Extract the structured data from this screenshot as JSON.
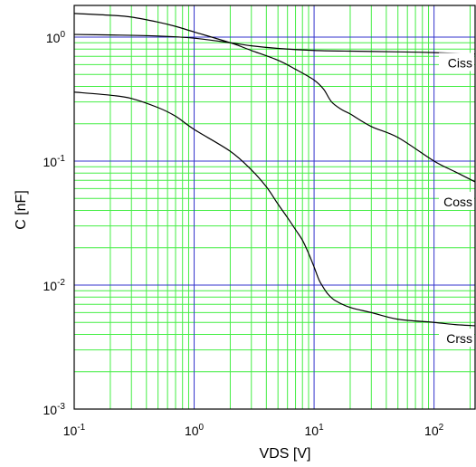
{
  "chart_data": {
    "type": "line",
    "title": "",
    "xlabel": "VDS [V]",
    "ylabel": "C [nF]",
    "xscale": "log",
    "yscale": "log",
    "xlim": [
      0.1,
      220
    ],
    "ylim": [
      0.001,
      1.8
    ],
    "grid": true,
    "colors": {
      "minor_grid": "#44ee44",
      "major_grid": "#3333cc",
      "curve": "#000000",
      "frame": "#000000"
    },
    "x_ticks": [
      {
        "base": "10",
        "exp": "-1",
        "value": 0.1
      },
      {
        "base": "10",
        "exp": "0",
        "value": 1
      },
      {
        "base": "10",
        "exp": "1",
        "value": 10
      },
      {
        "base": "10",
        "exp": "2",
        "value": 100
      }
    ],
    "y_ticks": [
      {
        "base": "10",
        "exp": "-3",
        "value": 0.001
      },
      {
        "base": "10",
        "exp": "-2",
        "value": 0.01
      },
      {
        "base": "10",
        "exp": "-1",
        "value": 0.1
      },
      {
        "base": "10",
        "exp": "0",
        "value": 1
      }
    ],
    "series": [
      {
        "name": "Ciss",
        "label_at": 0.62,
        "points": [
          [
            0.1,
            1.05
          ],
          [
            0.2,
            1.04
          ],
          [
            0.5,
            1.02
          ],
          [
            1,
            0.98
          ],
          [
            2,
            0.9
          ],
          [
            3,
            0.85
          ],
          [
            5,
            0.81
          ],
          [
            10,
            0.78
          ],
          [
            20,
            0.77
          ],
          [
            50,
            0.76
          ],
          [
            100,
            0.75
          ],
          [
            220,
            0.73
          ]
        ]
      },
      {
        "name": "Coss",
        "label_at": 0.047,
        "points": [
          [
            0.1,
            1.55
          ],
          [
            0.2,
            1.5
          ],
          [
            0.3,
            1.45
          ],
          [
            0.5,
            1.32
          ],
          [
            0.7,
            1.22
          ],
          [
            1,
            1.1
          ],
          [
            2,
            0.9
          ],
          [
            3,
            0.78
          ],
          [
            5,
            0.65
          ],
          [
            7,
            0.55
          ],
          [
            10,
            0.45
          ],
          [
            12,
            0.38
          ],
          [
            14,
            0.3
          ],
          [
            17,
            0.26
          ],
          [
            20,
            0.24
          ],
          [
            30,
            0.19
          ],
          [
            50,
            0.155
          ],
          [
            100,
            0.1
          ],
          [
            150,
            0.082
          ],
          [
            220,
            0.068
          ]
        ]
      },
      {
        "name": "Crss",
        "label_at": 0.0037,
        "points": [
          [
            0.1,
            0.36
          ],
          [
            0.2,
            0.34
          ],
          [
            0.3,
            0.32
          ],
          [
            0.5,
            0.27
          ],
          [
            0.7,
            0.23
          ],
          [
            1,
            0.18
          ],
          [
            2,
            0.12
          ],
          [
            3,
            0.085
          ],
          [
            4,
            0.062
          ],
          [
            5,
            0.045
          ],
          [
            6,
            0.035
          ],
          [
            7,
            0.028
          ],
          [
            8,
            0.023
          ],
          [
            9,
            0.018
          ],
          [
            10,
            0.014
          ],
          [
            11,
            0.011
          ],
          [
            12,
            0.0095
          ],
          [
            13,
            0.0085
          ],
          [
            15,
            0.0075
          ],
          [
            20,
            0.0066
          ],
          [
            30,
            0.006
          ],
          [
            50,
            0.0053
          ],
          [
            100,
            0.005
          ],
          [
            150,
            0.0048
          ],
          [
            220,
            0.0047
          ]
        ]
      }
    ]
  }
}
